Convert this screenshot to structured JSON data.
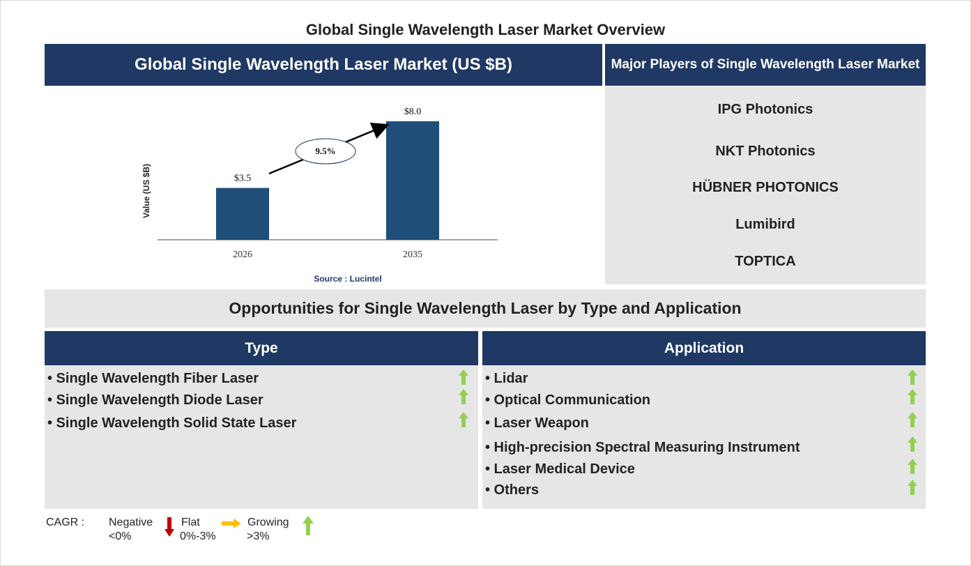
{
  "title": "Global Single Wavelength Laser Market Overview",
  "market_panel": {
    "title": "Global Single Wavelength Laser Market (US $B)",
    "source": "Source : Lucintel"
  },
  "chart_data": {
    "type": "bar",
    "categories": [
      "2026",
      "2035"
    ],
    "values": [
      3.5,
      8.0
    ],
    "value_labels": [
      "$3.5",
      "$8.0"
    ],
    "ylabel": "Value (US $B)",
    "xlabel": "",
    "cagr_label": "9.5%",
    "bar_color": "#1f4e79",
    "grid": false
  },
  "players_panel": {
    "title": "Major Players of Single Wavelength Laser Market",
    "players": [
      "IPG Photonics",
      "NKT Photonics",
      "HÜBNER PHOTONICS",
      "Lumibird",
      "TOPTICA"
    ]
  },
  "opportunities": {
    "title": "Opportunities for Single Wavelength Laser by Type and Application",
    "type": {
      "header": "Type",
      "items": [
        "• Single Wavelength Fiber Laser",
        "• Single Wavelength Diode Laser",
        "• Single Wavelength Solid State Laser"
      ]
    },
    "application": {
      "header": "Application",
      "items": [
        "• Lidar",
        "• Optical Communication",
        "• Laser Weapon",
        "• High-precision Spectral Measuring Instrument",
        "• Laser Medical Device",
        "• Others"
      ]
    }
  },
  "legend": {
    "cagr": "CAGR :",
    "negative": "Negative",
    "negative_range": "<0%",
    "flat": "Flat",
    "flat_range": "0%-3%",
    "growing": "Growing",
    "growing_range": ">3%"
  },
  "colors": {
    "navy": "#1f3864",
    "panel_grey": "#e6e6e6",
    "arrow_green": "#92d050",
    "arrow_red": "#c00000",
    "arrow_orange": "#ffc000"
  }
}
